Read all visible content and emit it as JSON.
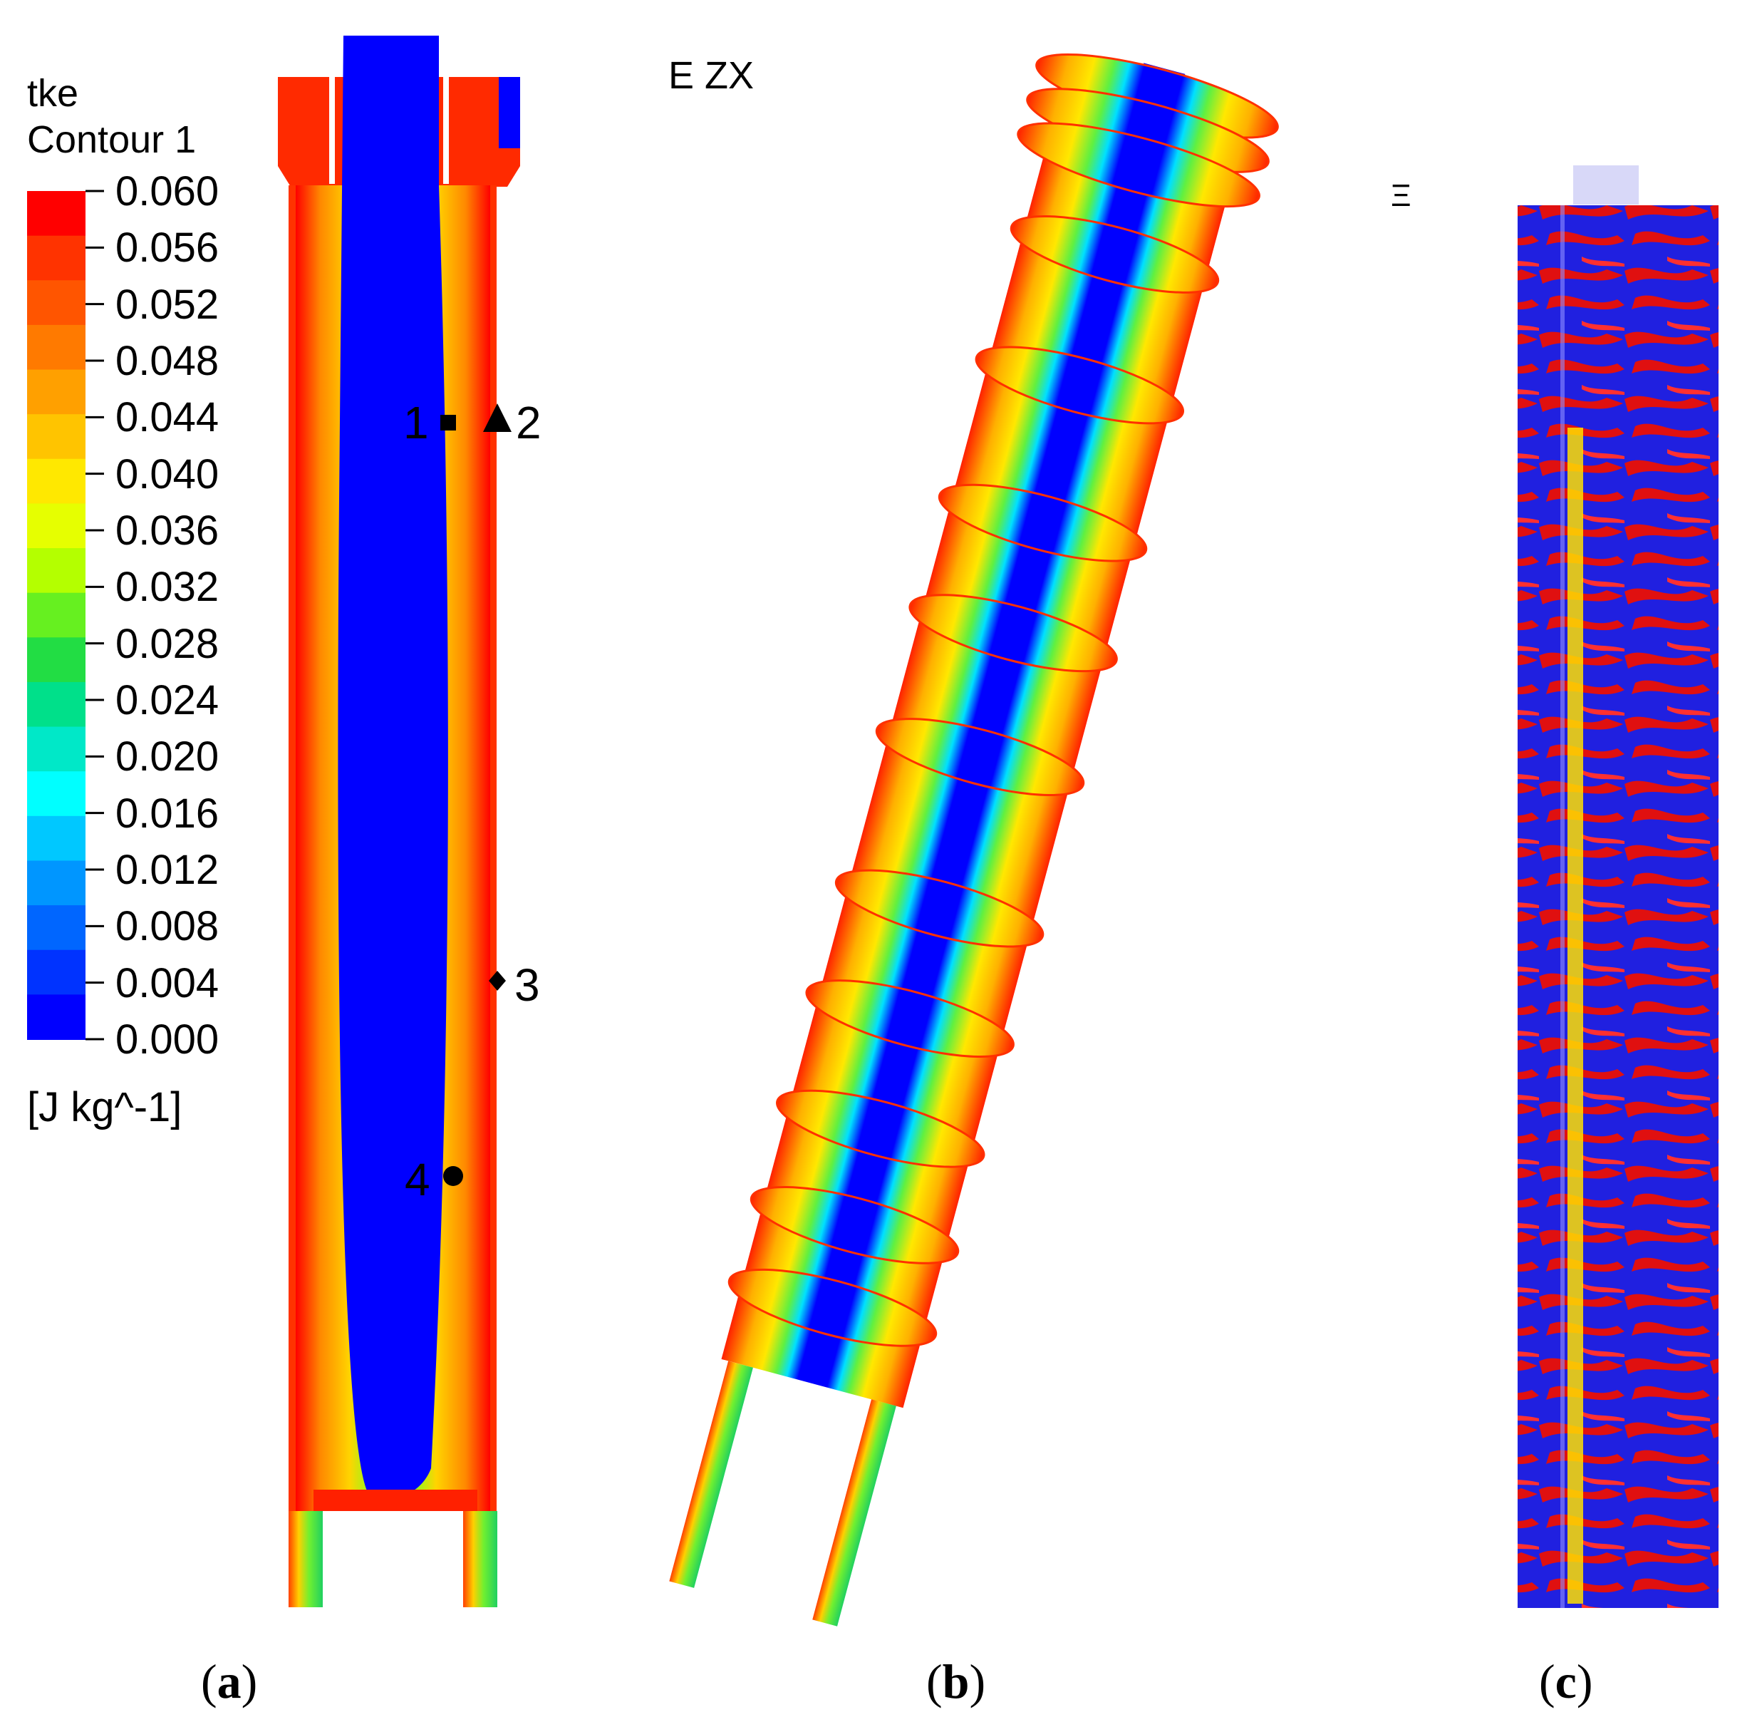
{
  "legend": {
    "variable": "tke",
    "contour_name": "Contour 1",
    "ticks": [
      "0.060",
      "0.056",
      "0.052",
      "0.048",
      "0.044",
      "0.040",
      "0.036",
      "0.032",
      "0.028",
      "0.024",
      "0.020",
      "0.016",
      "0.012",
      "0.008",
      "0.004",
      "0.000"
    ],
    "unit": "[J kg^-1]",
    "colors": [
      "#ff0000",
      "#ff3300",
      "#ff5500",
      "#ff7a00",
      "#ffa000",
      "#ffc400",
      "#ffe800",
      "#e6ff00",
      "#b4ff00",
      "#66f020",
      "#22dd44",
      "#00e08a",
      "#00e8c8",
      "#00ffff",
      "#00c8ff",
      "#0096ff",
      "#0066ff",
      "#0033ff",
      "#0000ff"
    ]
  },
  "panel_b": {
    "view_label": "E ZX"
  },
  "panel_c": {
    "view_label": "Ξ"
  },
  "probes": [
    {
      "label": "1",
      "marker": "square"
    },
    {
      "label": "2",
      "marker": "triangle"
    },
    {
      "label": "3",
      "marker": "diamond"
    },
    {
      "label": "4",
      "marker": "circle"
    }
  ],
  "panels": [
    {
      "open": "(",
      "letter": "a",
      "close": ")"
    },
    {
      "open": "(",
      "letter": "b",
      "close": ")"
    },
    {
      "open": "(",
      "letter": "c",
      "close": ")"
    }
  ]
}
